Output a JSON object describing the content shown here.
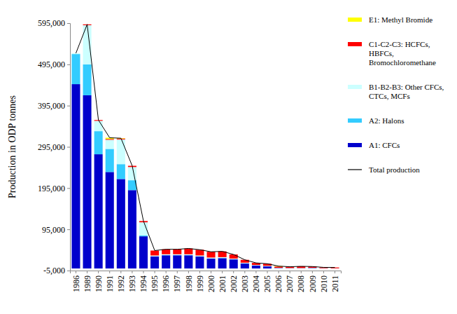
{
  "chart_data": {
    "type": "bar",
    "stacked": true,
    "legend": "right",
    "grid": false,
    "y_label": "Production in ODP tonnes",
    "categories": [
      "1986",
      "1989",
      "1990",
      "1991",
      "1992",
      "1993",
      "1994",
      "1995",
      "1996",
      "1997",
      "1998",
      "1999",
      "2000",
      "2001",
      "2002",
      "2003",
      "2004",
      "2005",
      "2006",
      "2007",
      "2008",
      "2009",
      "2010",
      "2011"
    ],
    "ylim": [
      -5000,
      595000
    ],
    "yticks": [
      {
        "value": -5000,
        "label": "-5,000"
      },
      {
        "value": 95000,
        "label": "95,000"
      },
      {
        "value": 195000,
        "label": "195,000"
      },
      {
        "value": 295000,
        "label": "295,000"
      },
      {
        "value": 395000,
        "label": "395,000"
      },
      {
        "value": 495000,
        "label": "495,000"
      },
      {
        "value": 595000,
        "label": "595,000"
      }
    ],
    "series": [
      {
        "name": "A1: CFCs",
        "type": "bar",
        "color": "#0000cc",
        "values": [
          447000,
          420000,
          277000,
          234000,
          217000,
          190000,
          78000,
          29000,
          32000,
          32000,
          32000,
          29000,
          24000,
          25000,
          22000,
          12000,
          7000,
          5000,
          1000,
          500,
          500,
          1000,
          300,
          100
        ]
      },
      {
        "name": "A2: Halons",
        "type": "bar",
        "color": "#33ccff",
        "values": [
          73000,
          75000,
          56000,
          56000,
          36000,
          24000,
          2000,
          500,
          500,
          500,
          500,
          500,
          500,
          500,
          500,
          500,
          500,
          500,
          200,
          200,
          200,
          200,
          100,
          100
        ]
      },
      {
        "name": "B1-B2-B3: Other CFCs, CTCs, MCFs",
        "type": "bar",
        "color": "#ccffff",
        "values": [
          2000,
          95000,
          25000,
          22000,
          60000,
          32000,
          32000,
          2000,
          2000,
          2000,
          2000,
          2000,
          2000,
          2000,
          1500,
          1500,
          1000,
          1000,
          500,
          500,
          500,
          500,
          300,
          300
        ]
      },
      {
        "name": "C1-C2-C3: HCFCs, HBFCs, Bromochloromethane",
        "type": "bar",
        "color": "#ff0000",
        "values": [
          0,
          2000,
          2000,
          2000,
          2000,
          3000,
          3000,
          12000,
          12000,
          12000,
          14000,
          14000,
          14000,
          14000,
          10000,
          7000,
          5000,
          5000,
          3000,
          3000,
          4000,
          3000,
          2000,
          2000
        ]
      },
      {
        "name": "E1: Methyl Bromide",
        "type": "bar",
        "color": "#ffff00",
        "values": [
          0,
          0,
          0,
          3000,
          1000,
          0,
          0,
          0,
          0,
          0,
          0,
          0,
          0,
          0,
          0,
          0,
          0,
          0,
          1000,
          0,
          0,
          0,
          0,
          0
        ]
      },
      {
        "name": "Total production",
        "type": "line",
        "color": "#000000",
        "line_style": "solid",
        "values": [
          522000,
          592000,
          360000,
          317000,
          316000,
          249000,
          115000,
          43500,
          46500,
          46500,
          48500,
          45500,
          40500,
          41500,
          34000,
          21000,
          13500,
          11500,
          5700,
          4200,
          5200,
          4700,
          2700,
          2500
        ]
      }
    ]
  }
}
